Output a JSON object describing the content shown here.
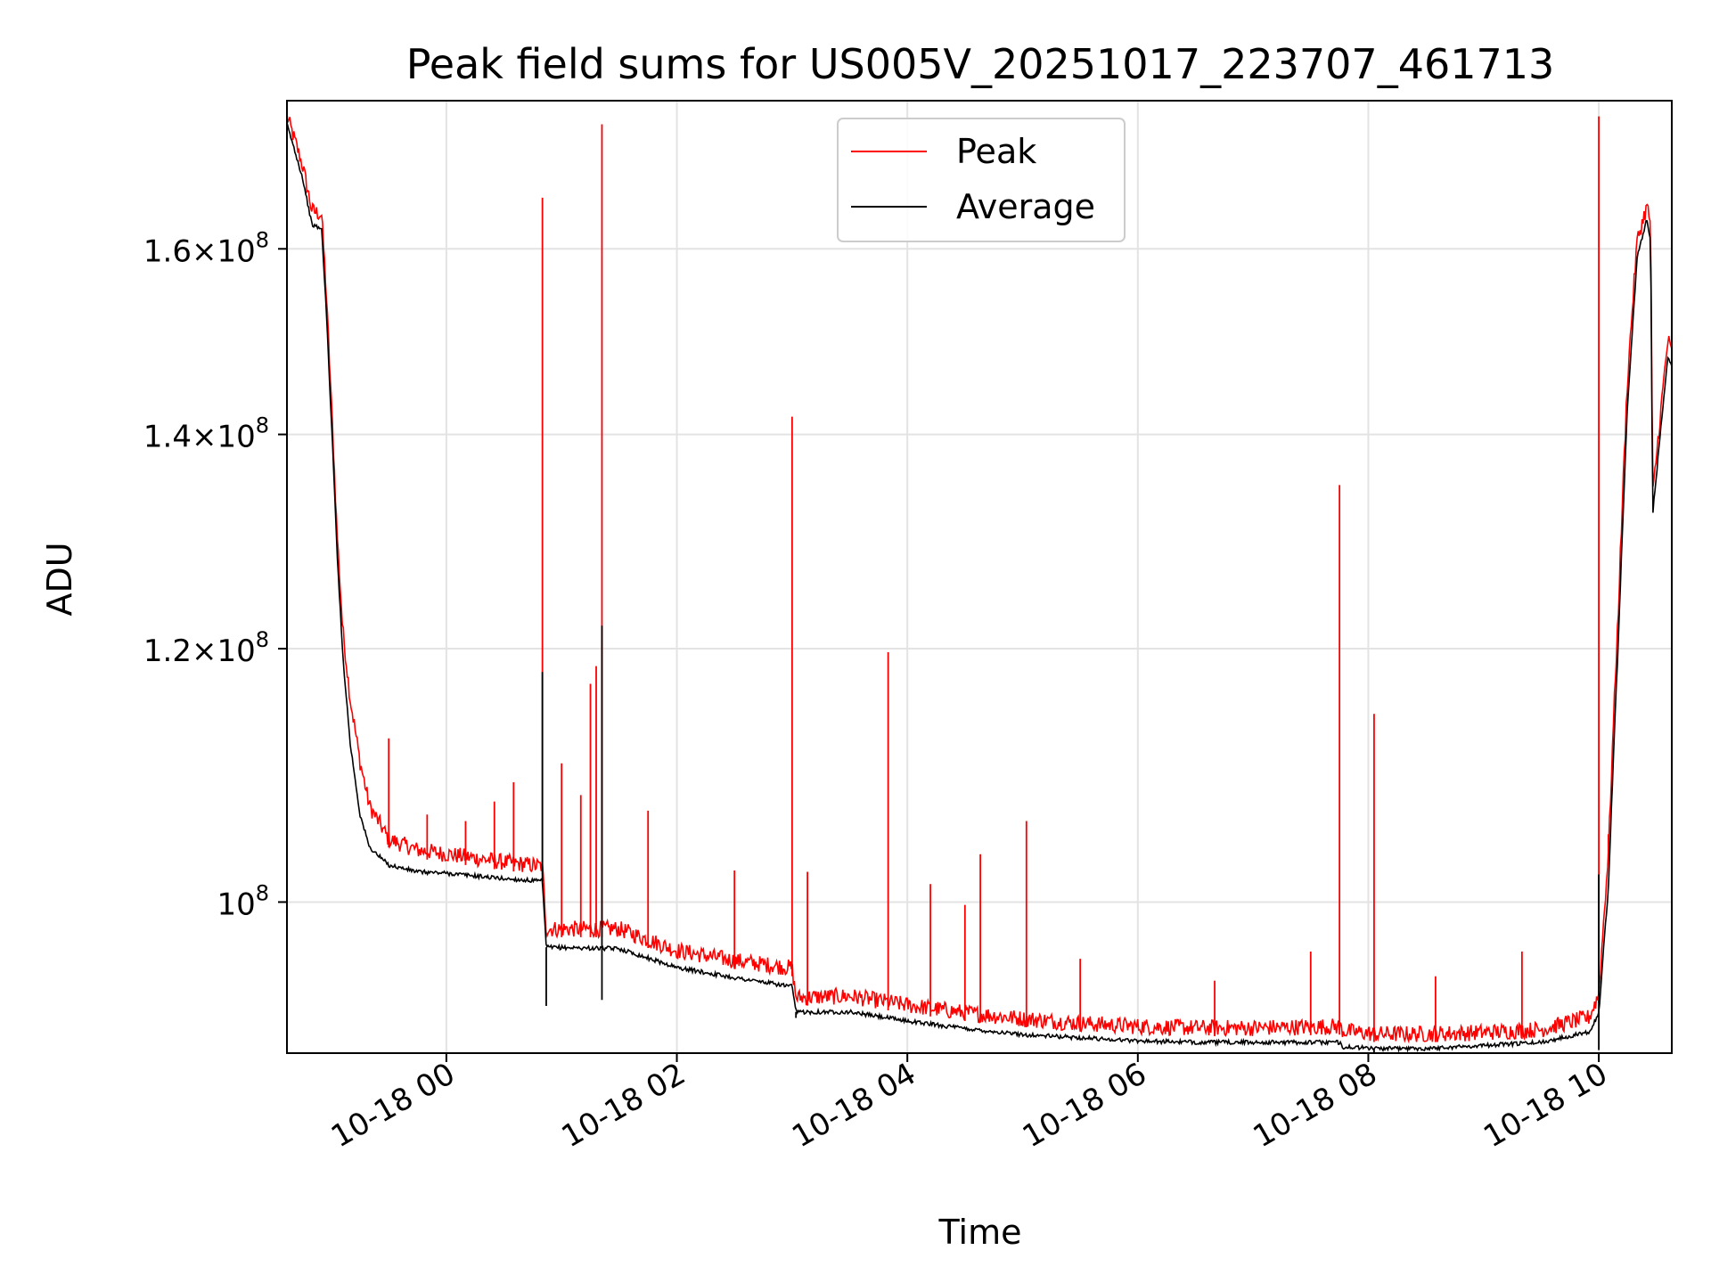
{
  "chart_data": {
    "type": "line",
    "title": "Peak field sums for US005V_20251017_223707_461713",
    "xlabel": "Time",
    "ylabel": "ADU",
    "y_scale": "log",
    "grid": true,
    "legend_placement": "upper center",
    "xlim": [
      "2025-10-17 22:37",
      "2025-10-18 10:38"
    ],
    "ylim": [
      89700000,
      178000000
    ],
    "x_ticks": [
      {
        "label": "10-18 00",
        "value": "2025-10-18 00:00"
      },
      {
        "label": "10-18 02",
        "value": "2025-10-18 02:00"
      },
      {
        "label": "10-18 04",
        "value": "2025-10-18 04:00"
      },
      {
        "label": "10-18 06",
        "value": "2025-10-18 06:00"
      },
      {
        "label": "10-18 08",
        "value": "2025-10-18 08:00"
      },
      {
        "label": "10-18 10",
        "value": "2025-10-18 10:00"
      }
    ],
    "y_ticks": [
      {
        "mant": "",
        "exp": "8",
        "value": 100000000
      },
      {
        "mant": "1.2×",
        "exp": "8",
        "value": 120000000
      },
      {
        "mant": "1.4×",
        "exp": "8",
        "value": 140000000
      },
      {
        "mant": "1.6×",
        "exp": "8",
        "value": 160000000
      }
    ],
    "series": [
      {
        "name": "Peak",
        "color": "#ff0000",
        "points": [
          [
            "2025-10-17 22:37",
            175000000
          ],
          [
            "2025-10-17 22:45",
            169000000
          ],
          [
            "2025-10-17 22:50",
            163500000
          ],
          [
            "2025-10-17 22:55",
            163000000
          ],
          [
            "2025-10-17 22:57",
            156000000
          ],
          [
            "2025-10-17 23:00",
            143000000
          ],
          [
            "2025-10-17 23:03",
            130000000
          ],
          [
            "2025-10-17 23:06",
            121000000
          ],
          [
            "2025-10-17 23:10",
            115000000
          ],
          [
            "2025-10-17 23:15",
            110000000
          ],
          [
            "2025-10-17 23:20",
            106500000
          ],
          [
            "2025-10-17 23:30",
            104000000
          ],
          [
            "2025-10-17 23:45",
            103200000
          ],
          [
            "2025-10-18 00:00",
            102900000
          ],
          [
            "2025-10-18 00:30",
            102300000
          ],
          [
            "2025-10-18 00:50",
            102000000
          ],
          [
            "2025-10-18 00:52",
            97500000
          ],
          [
            "2025-10-18 01:30",
            97500000
          ],
          [
            "2025-10-18 02:00",
            96000000
          ],
          [
            "2025-10-18 02:30",
            95300000
          ],
          [
            "2025-10-18 03:00",
            94800000
          ],
          [
            "2025-10-18 03:02",
            92800000
          ],
          [
            "2025-10-18 03:30",
            92900000
          ],
          [
            "2025-10-18 04:00",
            92300000
          ],
          [
            "2025-10-18 04:30",
            91800000
          ],
          [
            "2025-10-18 05:00",
            91400000
          ],
          [
            "2025-10-18 05:30",
            91100000
          ],
          [
            "2025-10-18 06:00",
            90900000
          ],
          [
            "2025-10-18 06:30",
            90800000
          ],
          [
            "2025-10-18 07:00",
            90800000
          ],
          [
            "2025-10-18 07:45",
            90900000
          ],
          [
            "2025-10-18 07:47",
            90600000
          ],
          [
            "2025-10-18 08:05",
            90400000
          ],
          [
            "2025-10-18 08:30",
            90400000
          ],
          [
            "2025-10-18 09:00",
            90500000
          ],
          [
            "2025-10-18 09:30",
            90700000
          ],
          [
            "2025-10-18 09:55",
            91500000
          ],
          [
            "2025-10-18 10:00",
            93000000
          ],
          [
            "2025-10-18 10:05",
            103000000
          ],
          [
            "2025-10-18 10:10",
            122000000
          ],
          [
            "2025-10-18 10:15",
            145000000
          ],
          [
            "2025-10-18 10:20",
            160000000
          ],
          [
            "2025-10-18 10:25",
            164000000
          ],
          [
            "2025-10-18 10:27",
            162000000
          ],
          [
            "2025-10-18 10:28",
            133000000
          ],
          [
            "2025-10-18 10:32",
            141000000
          ],
          [
            "2025-10-18 10:36",
            149000000
          ],
          [
            "2025-10-18 10:38",
            147500000
          ]
        ],
        "spikes": [
          [
            "2025-10-17 23:30",
            112500000
          ],
          [
            "2025-10-17 23:50",
            106500000
          ],
          [
            "2025-10-18 00:10",
            106000000
          ],
          [
            "2025-10-18 00:25",
            107500000
          ],
          [
            "2025-10-18 00:35",
            109000000
          ],
          [
            "2025-10-18 00:50",
            166000000
          ],
          [
            "2025-10-18 01:00",
            110500000
          ],
          [
            "2025-10-18 01:10",
            108000000
          ],
          [
            "2025-10-18 01:15",
            117000000
          ],
          [
            "2025-10-18 01:18",
            118500000
          ],
          [
            "2025-10-18 01:21",
            175000000
          ],
          [
            "2025-10-18 01:45",
            106800000
          ],
          [
            "2025-10-18 02:30",
            102300000
          ],
          [
            "2025-10-18 03:00",
            141800000
          ],
          [
            "2025-10-18 03:08",
            102200000
          ],
          [
            "2025-10-18 03:50",
            119700000
          ],
          [
            "2025-10-18 04:12",
            101300000
          ],
          [
            "2025-10-18 04:30",
            99800000
          ],
          [
            "2025-10-18 04:38",
            103500000
          ],
          [
            "2025-10-18 05:02",
            106000000
          ],
          [
            "2025-10-18 05:30",
            96000000
          ],
          [
            "2025-10-18 06:40",
            94500000
          ],
          [
            "2025-10-18 07:30",
            96500000
          ],
          [
            "2025-10-18 07:45",
            135000000
          ],
          [
            "2025-10-18 08:03",
            114500000
          ],
          [
            "2025-10-18 08:35",
            94800000
          ],
          [
            "2025-10-18 09:20",
            96500000
          ],
          [
            "2025-10-18 10:00",
            176000000
          ],
          [
            "2025-10-18 10:05",
            105000000
          ]
        ]
      },
      {
        "name": "Average",
        "color": "#000000",
        "points": [
          [
            "2025-10-17 22:37",
            175000000
          ],
          [
            "2025-10-17 22:45",
            168500000
          ],
          [
            "2025-10-17 22:50",
            162800000
          ],
          [
            "2025-10-17 22:55",
            162300000
          ],
          [
            "2025-10-17 22:57",
            155000000
          ],
          [
            "2025-10-17 23:00",
            142000000
          ],
          [
            "2025-10-17 23:03",
            129000000
          ],
          [
            "2025-10-17 23:06",
            119500000
          ],
          [
            "2025-10-17 23:10",
            112000000
          ],
          [
            "2025-10-17 23:15",
            106500000
          ],
          [
            "2025-10-17 23:20",
            104000000
          ],
          [
            "2025-10-17 23:30",
            102700000
          ],
          [
            "2025-10-17 23:45",
            102200000
          ],
          [
            "2025-10-18 00:00",
            102100000
          ],
          [
            "2025-10-18 00:30",
            101700000
          ],
          [
            "2025-10-18 00:50",
            101500000
          ],
          [
            "2025-10-18 00:52",
            96800000
          ],
          [
            "2025-10-18 01:30",
            96700000
          ],
          [
            "2025-10-18 02:00",
            95400000
          ],
          [
            "2025-10-18 02:30",
            94700000
          ],
          [
            "2025-10-18 03:00",
            94100000
          ],
          [
            "2025-10-18 03:02",
            92400000
          ],
          [
            "2025-10-18 03:30",
            92400000
          ],
          [
            "2025-10-18 04:00",
            91800000
          ],
          [
            "2025-10-18 04:30",
            91300000
          ],
          [
            "2025-10-18 05:00",
            90900000
          ],
          [
            "2025-10-18 05:30",
            90700000
          ],
          [
            "2025-10-18 06:00",
            90500000
          ],
          [
            "2025-10-18 06:30",
            90400000
          ],
          [
            "2025-10-18 07:00",
            90400000
          ],
          [
            "2025-10-18 07:45",
            90400000
          ],
          [
            "2025-10-18 07:47",
            90100000
          ],
          [
            "2025-10-18 08:05",
            90000000
          ],
          [
            "2025-10-18 08:30",
            90000000
          ],
          [
            "2025-10-18 09:00",
            90200000
          ],
          [
            "2025-10-18 09:30",
            90400000
          ],
          [
            "2025-10-18 09:55",
            91100000
          ],
          [
            "2025-10-18 10:00",
            92300000
          ],
          [
            "2025-10-18 10:05",
            101000000
          ],
          [
            "2025-10-18 10:10",
            120000000
          ],
          [
            "2025-10-18 10:15",
            143000000
          ],
          [
            "2025-10-18 10:20",
            159000000
          ],
          [
            "2025-10-18 10:25",
            163500000
          ],
          [
            "2025-10-18 10:27",
            161000000
          ],
          [
            "2025-10-18 10:28",
            132000000
          ],
          [
            "2025-10-18 10:32",
            140000000
          ],
          [
            "2025-10-18 10:36",
            148000000
          ],
          [
            "2025-10-18 10:38",
            147000000
          ]
        ],
        "spikes": [
          [
            "2025-10-18 00:50",
            118000000
          ],
          [
            "2025-10-18 01:21",
            122000000
          ],
          [
            "2025-10-18 10:00",
            102000000
          ]
        ],
        "dips": [
          [
            "2025-10-18 00:52",
            92800000
          ],
          [
            "2025-10-18 01:21",
            93200000
          ],
          [
            "2025-10-18 03:02",
            92000000
          ],
          [
            "2025-10-18 08:03",
            89700000
          ],
          [
            "2025-10-18 10:00",
            89900000
          ]
        ]
      }
    ]
  }
}
